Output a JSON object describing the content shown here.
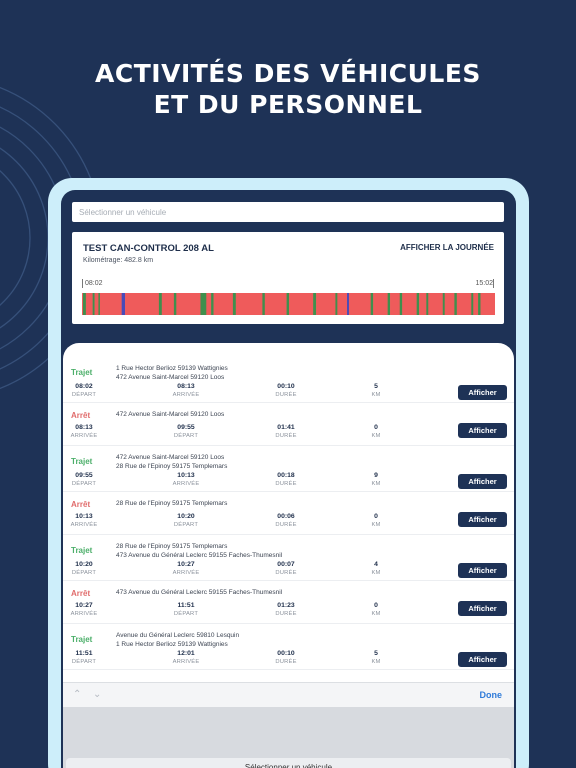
{
  "headline": {
    "line1": "ACTIVITÉS DES VÉHICULES",
    "line2": "ET DU PERSONNEL"
  },
  "search": {
    "placeholder": "Sélectionner un véhicule"
  },
  "summary": {
    "vehicle": "TEST CAN-CONTROL 208 AL",
    "km": "Kilométrage: 482.8 km",
    "show_day": "AFFICHER LA JOURNÉE",
    "start_time": "08:02",
    "end_time": "15:02"
  },
  "colors": {
    "stop": "#ef5b5b",
    "trip": "#3f8f4d",
    "marker": "#4a4ab8",
    "brand": "#1e3256",
    "done": "#2f7bd9"
  },
  "timeline": [
    [
      "stop",
      0.2
    ],
    [
      "trip",
      0.6
    ],
    [
      "stop",
      1.4
    ],
    [
      "trip",
      0.4
    ],
    [
      "stop",
      0.8
    ],
    [
      "trip",
      0.3
    ],
    [
      "stop",
      4.5
    ],
    [
      "marker",
      0.7
    ],
    [
      "stop",
      7
    ],
    [
      "trip",
      0.6
    ],
    [
      "stop",
      2.5
    ],
    [
      "trip",
      0.5
    ],
    [
      "stop",
      5
    ],
    [
      "trip",
      1.2
    ],
    [
      "stop",
      1
    ],
    [
      "trip",
      0.5
    ],
    [
      "stop",
      4
    ],
    [
      "trip",
      0.6
    ],
    [
      "stop",
      5.5
    ],
    [
      "trip",
      0.5
    ],
    [
      "stop",
      4.5
    ],
    [
      "trip",
      0.5
    ],
    [
      "stop",
      5
    ],
    [
      "trip",
      0.6
    ],
    [
      "stop",
      4
    ],
    [
      "trip",
      0.4
    ],
    [
      "stop",
      2
    ],
    [
      "marker",
      0.4
    ],
    [
      "stop",
      4.5
    ],
    [
      "trip",
      0.5
    ],
    [
      "stop",
      3
    ],
    [
      "trip",
      0.5
    ],
    [
      "stop",
      2
    ],
    [
      "trip",
      0.5
    ],
    [
      "stop",
      3
    ],
    [
      "trip",
      0.5
    ],
    [
      "stop",
      1.5
    ],
    [
      "trip",
      0.4
    ],
    [
      "stop",
      3
    ],
    [
      "trip",
      0.4
    ],
    [
      "stop",
      2
    ],
    [
      "trip",
      0.5
    ],
    [
      "stop",
      3
    ],
    [
      "trip",
      0.4
    ],
    [
      "stop",
      1
    ],
    [
      "trip",
      0.5
    ],
    [
      "stop",
      3
    ]
  ],
  "labels": {
    "depart": "DÉPART",
    "arrivee": "ARRIVÉE",
    "duree": "DURÉE",
    "km": "KM",
    "trajet": "Trajet",
    "arret": "Arrêt",
    "afficher": "Afficher"
  },
  "rows": [
    {
      "type": "Trajet",
      "addr1": "1 Rue Hector Berlioz 59139 Wattignies",
      "addr2": "472 Avenue Saint-Marcel 59120 Loos",
      "c1": "08:02",
      "l1": "DÉPART",
      "c2": "08:13",
      "l2": "ARRIVÉE",
      "c3": "00:10",
      "l3": "DURÉE",
      "c4": "5",
      "l4": "KM",
      "button": "Afficher"
    },
    {
      "type": "Arrêt",
      "addr1": "472 Avenue Saint-Marcel 59120 Loos",
      "addr2": "",
      "c1": "08:13",
      "l1": "ARRIVÉE",
      "c2": "09:55",
      "l2": "DÉPART",
      "c3": "01:41",
      "l3": "DURÉE",
      "c4": "0",
      "l4": "KM",
      "button": "Afficher"
    },
    {
      "type": "Trajet",
      "addr1": "472 Avenue Saint-Marcel 59120 Loos",
      "addr2": "28 Rue de l'Epinoy 59175 Templemars",
      "c1": "09:55",
      "l1": "DÉPART",
      "c2": "10:13",
      "l2": "ARRIVÉE",
      "c3": "00:18",
      "l3": "DURÉE",
      "c4": "9",
      "l4": "KM",
      "button": "Afficher"
    },
    {
      "type": "Arrêt",
      "addr1": "28 Rue de l'Epinoy 59175 Templemars",
      "addr2": "",
      "c1": "10:13",
      "l1": "ARRIVÉE",
      "c2": "10:20",
      "l2": "DÉPART",
      "c3": "00:06",
      "l3": "DURÉE",
      "c4": "0",
      "l4": "KM",
      "button": "Afficher"
    },
    {
      "type": "Trajet",
      "addr1": "28 Rue de l'Epinoy 59175 Templemars",
      "addr2": "473 Avenue du Général Leclerc 59155 Faches-Thumesnil",
      "c1": "10:20",
      "l1": "DÉPART",
      "c2": "10:27",
      "l2": "ARRIVÉE",
      "c3": "00:07",
      "l3": "DURÉE",
      "c4": "4",
      "l4": "KM",
      "button": "Afficher"
    },
    {
      "type": "Arrêt",
      "addr1": "473 Avenue du Général Leclerc 59155 Faches-Thumesnil",
      "addr2": "",
      "c1": "10:27",
      "l1": "ARRIVÉE",
      "c2": "11:51",
      "l2": "DÉPART",
      "c3": "01:23",
      "l3": "DURÉE",
      "c4": "0",
      "l4": "KM",
      "button": "Afficher"
    },
    {
      "type": "Trajet",
      "addr1": "Avenue du Général Leclerc 59810 Lesquin",
      "addr2": "1 Rue Hector Berlioz 59139 Wattignies",
      "c1": "11:51",
      "l1": "DÉPART",
      "c2": "12:01",
      "l2": "ARRIVÉE",
      "c3": "00:10",
      "l3": "DURÉE",
      "c4": "5",
      "l4": "KM",
      "button": "Afficher"
    }
  ],
  "keyboard": {
    "done": "Done",
    "picker_label": "Sélectionner un véhicule"
  }
}
